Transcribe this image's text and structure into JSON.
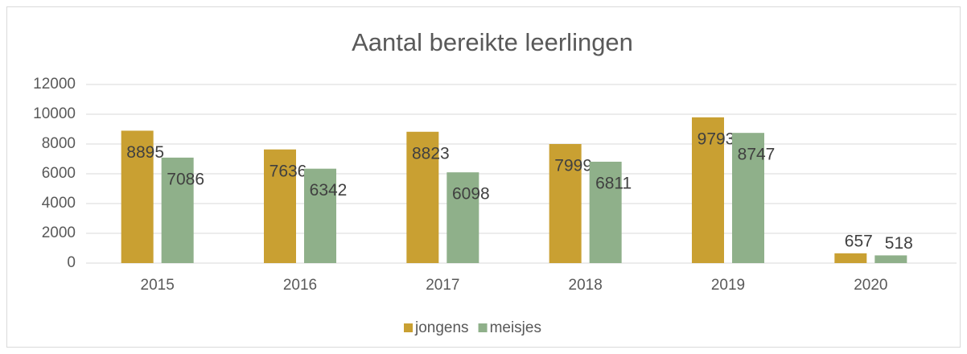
{
  "chart_data": {
    "type": "bar",
    "title": "Aantal bereikte leerlingen",
    "categories": [
      "2015",
      "2016",
      "2017",
      "2018",
      "2019",
      "2020"
    ],
    "series": [
      {
        "name": "jongens",
        "color": "#c9a032",
        "values": [
          8895,
          7636,
          8823,
          7999,
          9793,
          657
        ]
      },
      {
        "name": "meisjes",
        "color": "#8fb08a",
        "values": [
          7086,
          6342,
          6098,
          6811,
          8747,
          518
        ]
      }
    ],
    "ylim": [
      0,
      12000
    ],
    "yticks": [
      0,
      2000,
      4000,
      6000,
      8000,
      10000,
      12000
    ],
    "grid": true,
    "legend": "bottom"
  }
}
